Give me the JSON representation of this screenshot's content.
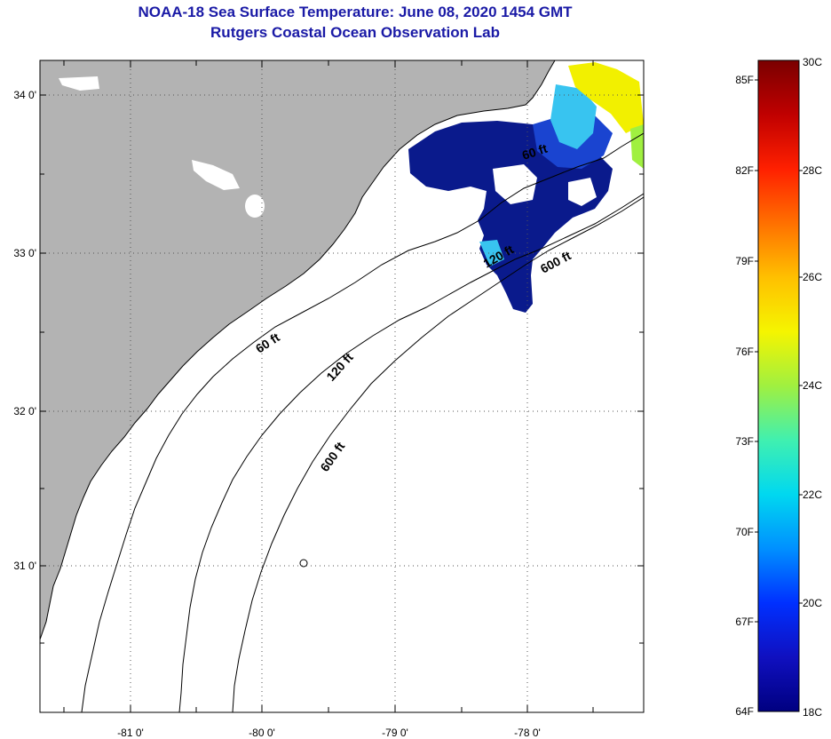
{
  "header": {
    "title": "NOAA-18 Sea Surface Temperature:  June 08, 2020 1454 GMT",
    "subtitle": "Rutgers Coastal Ocean Observation Lab"
  },
  "axes": {
    "lat_labels": [
      "34 0'",
      "33 0'",
      "32 0'",
      "31 0'"
    ],
    "lon_labels": [
      "-81 0'",
      "-80 0'",
      "-79 0'",
      "-78 0'"
    ]
  },
  "contours": {
    "c60a": "60 ft",
    "c120a": "120 ft",
    "c600a": "600 ft",
    "c60b": "60 ft",
    "c120b": "120 ft",
    "c600b": "600 ft"
  },
  "colorbar": {
    "f_labels": [
      "85F",
      "82F",
      "79F",
      "76F",
      "73F",
      "70F",
      "67F",
      "64F"
    ],
    "c_labels": [
      "30C",
      "28C",
      "26C",
      "24C",
      "22C",
      "20C",
      "18C"
    ],
    "colors_hot_to_cold": [
      "#7a0000",
      "#c00000",
      "#ff2000",
      "#ff7000",
      "#ffc000",
      "#f5f500",
      "#a0f040",
      "#40f0b0",
      "#00d8f0",
      "#0090ff",
      "#0030ff",
      "#1010c0",
      "#000080"
    ]
  },
  "colors": {
    "land": "#b3b3b3",
    "ocean": "#ffffff",
    "sst_cold": "#0a1a8c",
    "sst_blue": "#1a44d0",
    "sst_cyan": "#38c4f0",
    "sst_yellow": "#f2f000"
  }
}
